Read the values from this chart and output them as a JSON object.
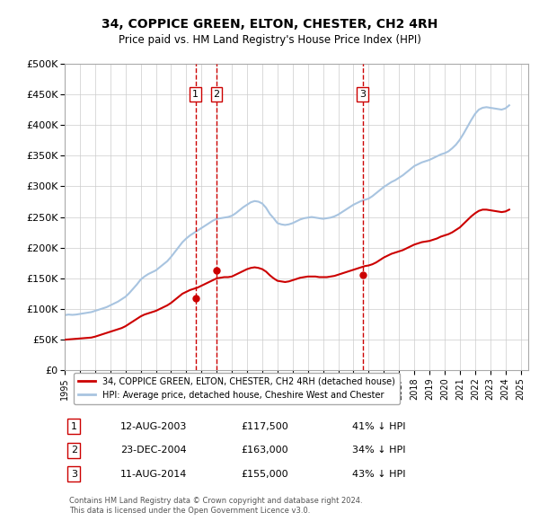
{
  "title": "34, COPPICE GREEN, ELTON, CHESTER, CH2 4RH",
  "subtitle": "Price paid vs. HM Land Registry's House Price Index (HPI)",
  "ylabel_ticks": [
    "£0",
    "£50K",
    "£100K",
    "£150K",
    "£200K",
    "£250K",
    "£300K",
    "£350K",
    "£400K",
    "£450K",
    "£500K"
  ],
  "ylim": [
    0,
    500000
  ],
  "xlim_start": 1995.0,
  "xlim_end": 2025.5,
  "hpi_color": "#a8c4e0",
  "price_color": "#cc0000",
  "vline_color": "#cc0000",
  "grid_color": "#cccccc",
  "background_color": "#ffffff",
  "purchases": [
    {
      "date_year": 2003.61,
      "price": 117500,
      "label": "1"
    },
    {
      "date_year": 2004.98,
      "price": 163000,
      "label": "2"
    },
    {
      "date_year": 2014.61,
      "price": 155000,
      "label": "3"
    }
  ],
  "legend_entries": [
    "34, COPPICE GREEN, ELTON, CHESTER, CH2 4RH (detached house)",
    "HPI: Average price, detached house, Cheshire West and Chester"
  ],
  "table_rows": [
    {
      "num": "1",
      "date": "12-AUG-2003",
      "price": "£117,500",
      "pct": "41% ↓ HPI"
    },
    {
      "num": "2",
      "date": "23-DEC-2004",
      "price": "£163,000",
      "pct": "34% ↓ HPI"
    },
    {
      "num": "3",
      "date": "11-AUG-2014",
      "price": "£155,000",
      "pct": "43% ↓ HPI"
    }
  ],
  "footer": "Contains HM Land Registry data © Crown copyright and database right 2024.\nThis data is licensed under the Open Government Licence v3.0.",
  "hpi_data_years": [
    1995.0,
    1995.25,
    1995.5,
    1995.75,
    1996.0,
    1996.25,
    1996.5,
    1996.75,
    1997.0,
    1997.25,
    1997.5,
    1997.75,
    1998.0,
    1998.25,
    1998.5,
    1998.75,
    1999.0,
    1999.25,
    1999.5,
    1999.75,
    2000.0,
    2000.25,
    2000.5,
    2000.75,
    2001.0,
    2001.25,
    2001.5,
    2001.75,
    2002.0,
    2002.25,
    2002.5,
    2002.75,
    2003.0,
    2003.25,
    2003.5,
    2003.75,
    2004.0,
    2004.25,
    2004.5,
    2004.75,
    2005.0,
    2005.25,
    2005.5,
    2005.75,
    2006.0,
    2006.25,
    2006.5,
    2006.75,
    2007.0,
    2007.25,
    2007.5,
    2007.75,
    2008.0,
    2008.25,
    2008.5,
    2008.75,
    2009.0,
    2009.25,
    2009.5,
    2009.75,
    2010.0,
    2010.25,
    2010.5,
    2010.75,
    2011.0,
    2011.25,
    2011.5,
    2011.75,
    2012.0,
    2012.25,
    2012.5,
    2012.75,
    2013.0,
    2013.25,
    2013.5,
    2013.75,
    2014.0,
    2014.25,
    2014.5,
    2014.75,
    2015.0,
    2015.25,
    2015.5,
    2015.75,
    2016.0,
    2016.25,
    2016.5,
    2016.75,
    2017.0,
    2017.25,
    2017.5,
    2017.75,
    2018.0,
    2018.25,
    2018.5,
    2018.75,
    2019.0,
    2019.25,
    2019.5,
    2019.75,
    2020.0,
    2020.25,
    2020.5,
    2020.75,
    2021.0,
    2021.25,
    2021.5,
    2021.75,
    2022.0,
    2022.25,
    2022.5,
    2022.75,
    2023.0,
    2023.25,
    2023.5,
    2023.75,
    2024.0,
    2024.25
  ],
  "hpi_data_values": [
    90000,
    91000,
    90500,
    91000,
    92000,
    93000,
    94000,
    95000,
    97000,
    99000,
    101000,
    103000,
    106000,
    109000,
    112000,
    116000,
    120000,
    126000,
    133000,
    140000,
    148000,
    153000,
    157000,
    160000,
    163000,
    168000,
    173000,
    178000,
    185000,
    193000,
    201000,
    209000,
    215000,
    220000,
    224000,
    228000,
    232000,
    236000,
    240000,
    244000,
    247000,
    248000,
    249000,
    250000,
    252000,
    256000,
    261000,
    266000,
    270000,
    274000,
    276000,
    275000,
    272000,
    265000,
    255000,
    248000,
    240000,
    238000,
    237000,
    238000,
    240000,
    243000,
    246000,
    248000,
    249000,
    250000,
    249000,
    248000,
    247000,
    248000,
    249000,
    251000,
    254000,
    258000,
    262000,
    266000,
    270000,
    273000,
    276000,
    278000,
    280000,
    284000,
    289000,
    294000,
    299000,
    303000,
    307000,
    310000,
    314000,
    318000,
    323000,
    328000,
    333000,
    336000,
    339000,
    341000,
    343000,
    346000,
    349000,
    352000,
    354000,
    357000,
    362000,
    368000,
    376000,
    386000,
    397000,
    408000,
    418000,
    425000,
    428000,
    429000,
    428000,
    427000,
    426000,
    425000,
    427000,
    432000
  ],
  "price_data_years": [
    1995.0,
    1995.25,
    1995.5,
    1995.75,
    1996.0,
    1996.25,
    1996.5,
    1996.75,
    1997.0,
    1997.25,
    1997.5,
    1997.75,
    1998.0,
    1998.25,
    1998.5,
    1998.75,
    1999.0,
    1999.25,
    1999.5,
    1999.75,
    2000.0,
    2000.25,
    2000.5,
    2000.75,
    2001.0,
    2001.25,
    2001.5,
    2001.75,
    2002.0,
    2002.25,
    2002.5,
    2002.75,
    2003.0,
    2003.25,
    2003.5,
    2003.75,
    2004.0,
    2004.25,
    2004.5,
    2004.75,
    2005.0,
    2005.25,
    2005.5,
    2005.75,
    2006.0,
    2006.25,
    2006.5,
    2006.75,
    2007.0,
    2007.25,
    2007.5,
    2007.75,
    2008.0,
    2008.25,
    2008.5,
    2008.75,
    2009.0,
    2009.25,
    2009.5,
    2009.75,
    2010.0,
    2010.25,
    2010.5,
    2010.75,
    2011.0,
    2011.25,
    2011.5,
    2011.75,
    2012.0,
    2012.25,
    2012.5,
    2012.75,
    2013.0,
    2013.25,
    2013.5,
    2013.75,
    2014.0,
    2014.25,
    2014.5,
    2014.75,
    2015.0,
    2015.25,
    2015.5,
    2015.75,
    2016.0,
    2016.25,
    2016.5,
    2016.75,
    2017.0,
    2017.25,
    2017.5,
    2017.75,
    2018.0,
    2018.25,
    2018.5,
    2018.75,
    2019.0,
    2019.25,
    2019.5,
    2019.75,
    2020.0,
    2020.25,
    2020.5,
    2020.75,
    2021.0,
    2021.25,
    2021.5,
    2021.75,
    2022.0,
    2022.25,
    2022.5,
    2022.75,
    2023.0,
    2023.25,
    2023.5,
    2023.75,
    2024.0,
    2024.25
  ],
  "price_data_values": [
    50000,
    50500,
    51000,
    51500,
    52000,
    52500,
    53000,
    53500,
    55000,
    57000,
    59000,
    61000,
    63000,
    65000,
    67000,
    69000,
    72000,
    76000,
    80000,
    84000,
    88000,
    91000,
    93000,
    95000,
    97000,
    100000,
    103000,
    106000,
    110000,
    115000,
    120000,
    125000,
    128000,
    131000,
    133000,
    135000,
    138000,
    141000,
    144000,
    147000,
    150000,
    151000,
    152000,
    152000,
    153000,
    156000,
    159000,
    162000,
    165000,
    167000,
    168000,
    167000,
    165000,
    161000,
    155000,
    150000,
    146000,
    145000,
    144000,
    145000,
    147000,
    149000,
    151000,
    152000,
    153000,
    153000,
    153000,
    152000,
    152000,
    152000,
    153000,
    154000,
    156000,
    158000,
    160000,
    162000,
    164000,
    166000,
    168000,
    170000,
    171000,
    173000,
    176000,
    180000,
    184000,
    187000,
    190000,
    192000,
    194000,
    196000,
    199000,
    202000,
    205000,
    207000,
    209000,
    210000,
    211000,
    213000,
    215000,
    218000,
    220000,
    222000,
    225000,
    229000,
    233000,
    239000,
    245000,
    251000,
    256000,
    260000,
    262000,
    262000,
    261000,
    260000,
    259000,
    258000,
    259000,
    262000
  ]
}
